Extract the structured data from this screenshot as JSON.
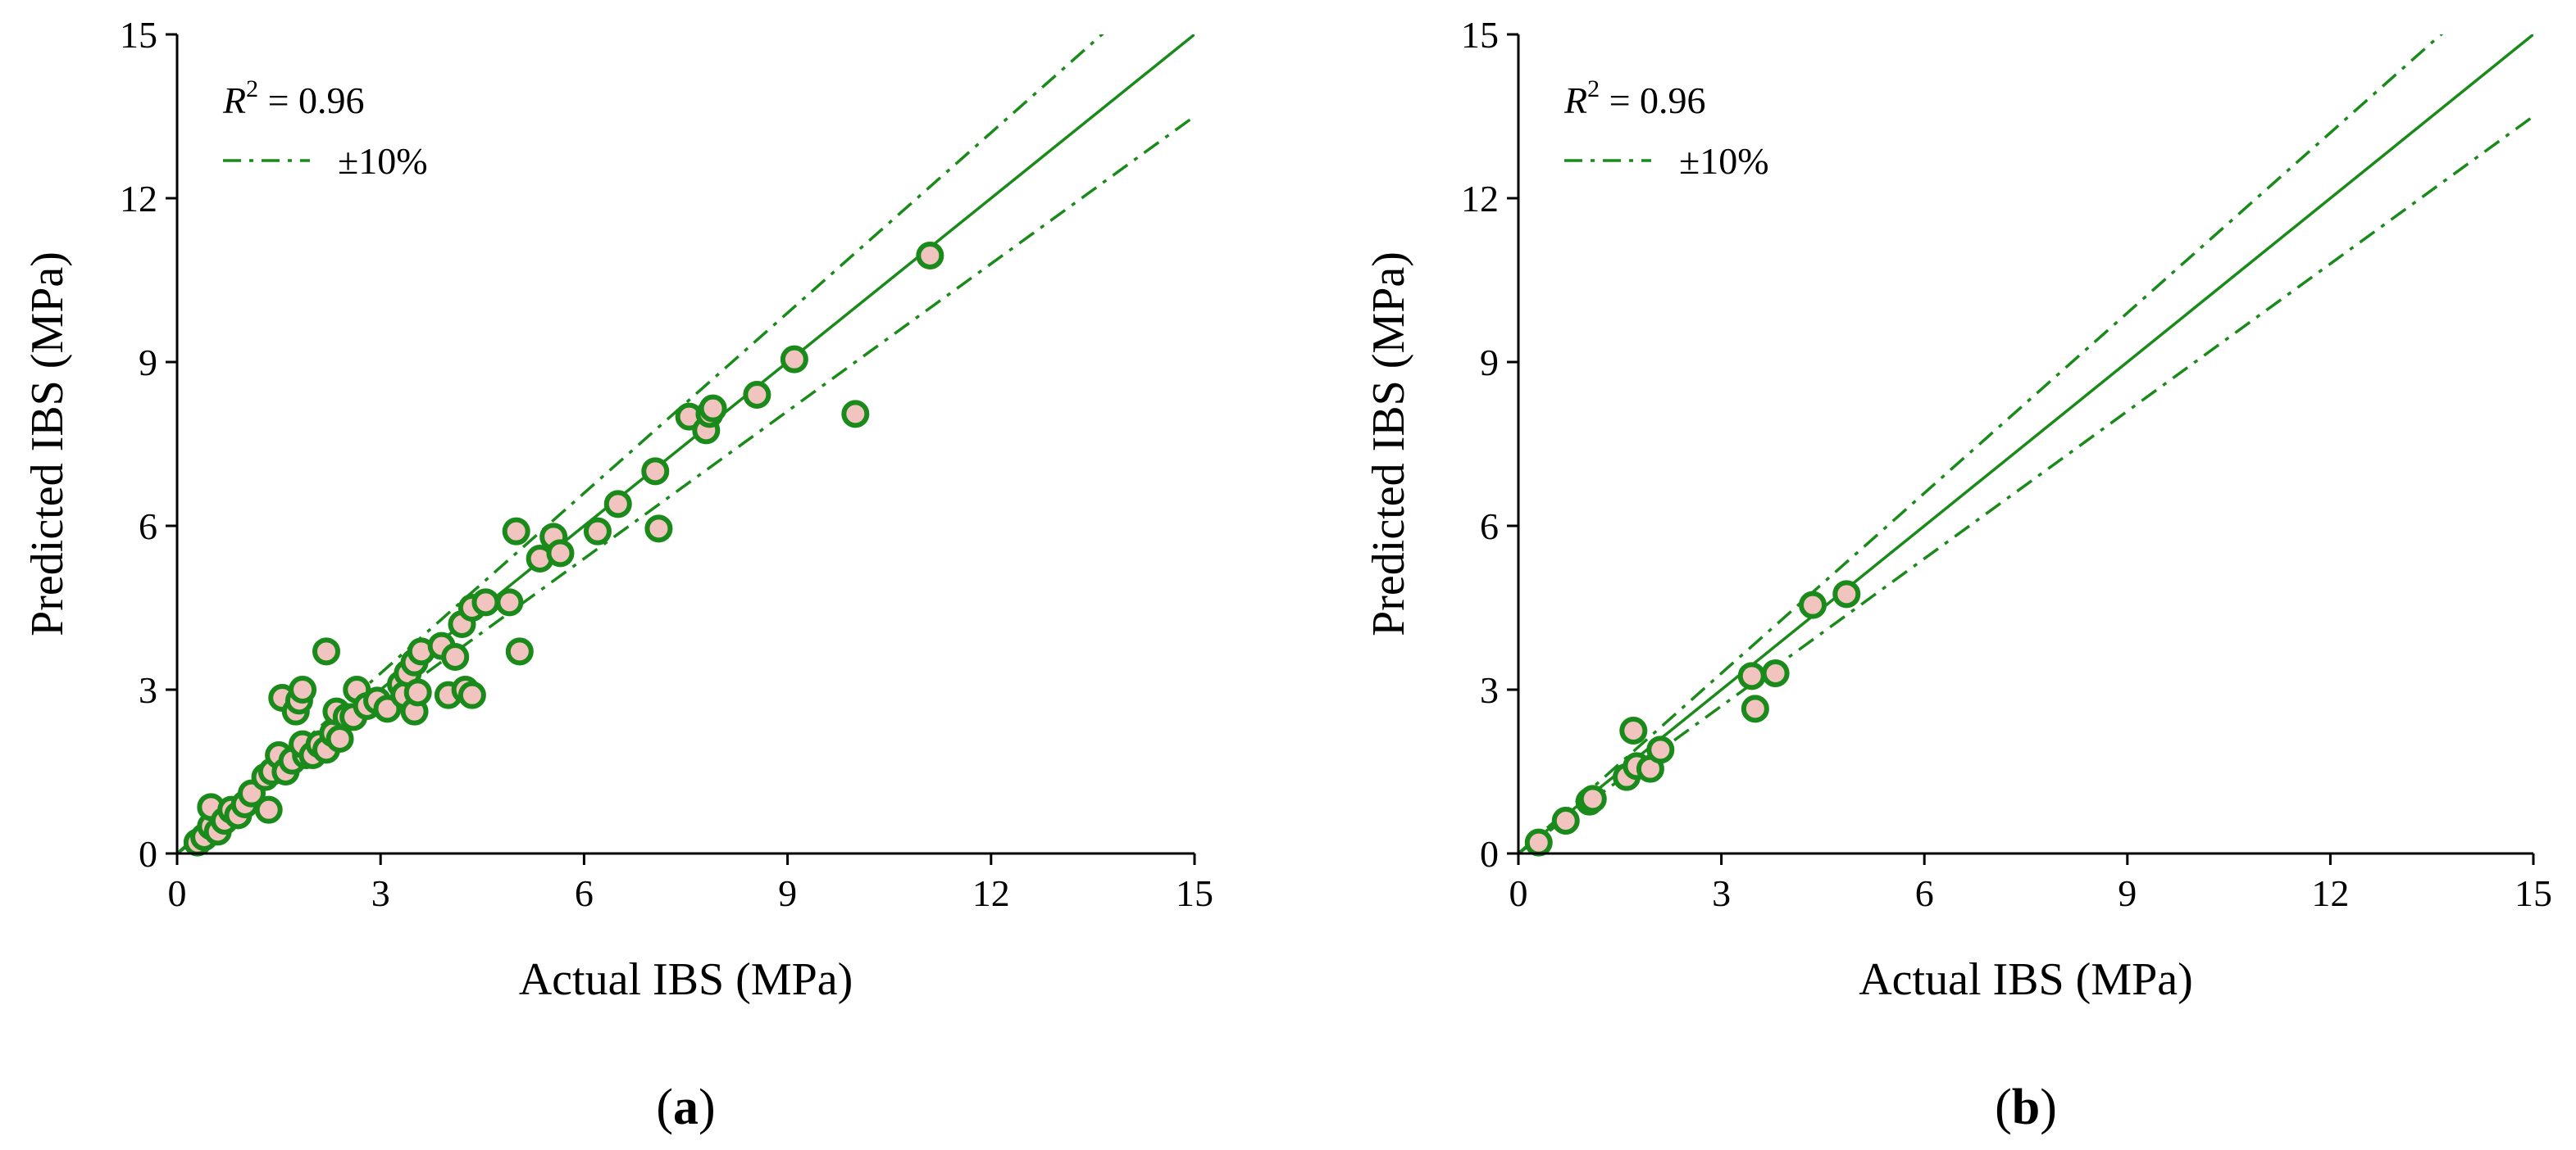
{
  "colors": {
    "line": "#1a8a1a",
    "marker_edge": "#1a8a1a",
    "marker_fill": "#f2c4c0",
    "axis": "#000000"
  },
  "chart_data": [
    {
      "type": "scatter",
      "panel_label": "(a)",
      "panel_letter": "a",
      "xlabel": "Actual IBS (MPa)",
      "ylabel": "Predicted IBS (MPa)",
      "xlim": [
        0,
        15
      ],
      "ylim": [
        0,
        15
      ],
      "xticks": [
        0,
        3,
        6,
        9,
        12,
        15
      ],
      "yticks": [
        0,
        3,
        6,
        9,
        12,
        15
      ],
      "annotation": {
        "r2_symbol": "R",
        "r2_exp": "2",
        "r2_value": " = 0.96"
      },
      "legend": [
        {
          "label": "±10%",
          "style": "dash-dot"
        }
      ],
      "reference_lines": [
        {
          "name": "y = x",
          "slope": 1.0,
          "style": "solid"
        },
        {
          "name": "+10%",
          "slope": 1.1,
          "style": "dash-dot"
        },
        {
          "name": "-10%",
          "slope": 0.9,
          "style": "dash-dot"
        }
      ],
      "points": [
        [
          0.3,
          0.2
        ],
        [
          0.4,
          0.3
        ],
        [
          0.5,
          0.5
        ],
        [
          0.6,
          0.4
        ],
        [
          0.5,
          0.85
        ],
        [
          0.7,
          0.6
        ],
        [
          0.8,
          0.8
        ],
        [
          0.9,
          0.7
        ],
        [
          1.0,
          0.9
        ],
        [
          1.1,
          1.1
        ],
        [
          1.3,
          1.4
        ],
        [
          1.35,
          0.8
        ],
        [
          1.4,
          1.5
        ],
        [
          1.5,
          1.8
        ],
        [
          1.55,
          2.85
        ],
        [
          1.6,
          1.5
        ],
        [
          1.7,
          1.7
        ],
        [
          1.75,
          2.6
        ],
        [
          1.8,
          2.8
        ],
        [
          1.85,
          3.0
        ],
        [
          1.9,
          1.8
        ],
        [
          1.85,
          2.0
        ],
        [
          2.0,
          1.8
        ],
        [
          2.1,
          2.0
        ],
        [
          2.2,
          1.9
        ],
        [
          2.2,
          3.7
        ],
        [
          2.3,
          2.2
        ],
        [
          2.35,
          2.6
        ],
        [
          2.4,
          2.1
        ],
        [
          2.5,
          2.5
        ],
        [
          2.6,
          2.5
        ],
        [
          2.65,
          3.0
        ],
        [
          2.8,
          2.7
        ],
        [
          2.95,
          2.8
        ],
        [
          3.1,
          2.65
        ],
        [
          3.3,
          3.1
        ],
        [
          3.35,
          2.9
        ],
        [
          3.4,
          3.3
        ],
        [
          3.5,
          3.5
        ],
        [
          3.5,
          2.6
        ],
        [
          3.55,
          2.95
        ],
        [
          3.6,
          3.7
        ],
        [
          3.9,
          3.8
        ],
        [
          4.0,
          2.9
        ],
        [
          4.1,
          3.6
        ],
        [
          4.2,
          4.2
        ],
        [
          4.25,
          3.0
        ],
        [
          4.35,
          4.5
        ],
        [
          4.35,
          2.9
        ],
        [
          4.55,
          4.6
        ],
        [
          4.9,
          4.6
        ],
        [
          5.0,
          5.9
        ],
        [
          5.05,
          3.7
        ],
        [
          5.35,
          5.4
        ],
        [
          5.55,
          5.8
        ],
        [
          5.65,
          5.5
        ],
        [
          6.2,
          5.9
        ],
        [
          6.5,
          6.4
        ],
        [
          7.05,
          7.0
        ],
        [
          7.1,
          5.95
        ],
        [
          7.55,
          8.0
        ],
        [
          7.8,
          7.75
        ],
        [
          7.85,
          8.05
        ],
        [
          7.9,
          8.15
        ],
        [
          8.55,
          8.4
        ],
        [
          9.1,
          9.05
        ],
        [
          10.0,
          8.05
        ],
        [
          11.1,
          10.95
        ]
      ]
    },
    {
      "type": "scatter",
      "panel_label": "(b)",
      "panel_letter": "b",
      "xlabel": "Actual IBS (MPa)",
      "ylabel": "Predicted IBS (MPa)",
      "xlim": [
        0,
        15
      ],
      "ylim": [
        0,
        15
      ],
      "xticks": [
        0,
        3,
        6,
        9,
        12,
        15
      ],
      "yticks": [
        0,
        3,
        6,
        9,
        12,
        15
      ],
      "annotation": {
        "r2_symbol": "R",
        "r2_exp": "2",
        "r2_value": " = 0.96"
      },
      "legend": [
        {
          "label": "±10%",
          "style": "dash-dot"
        }
      ],
      "reference_lines": [
        {
          "name": "y = x",
          "slope": 1.0,
          "style": "solid"
        },
        {
          "name": "+10%",
          "slope": 1.1,
          "style": "dash-dot"
        },
        {
          "name": "-10%",
          "slope": 0.9,
          "style": "dash-dot"
        }
      ],
      "points": [
        [
          0.3,
          0.2
        ],
        [
          0.7,
          0.6
        ],
        [
          1.05,
          0.95
        ],
        [
          1.1,
          1.0
        ],
        [
          1.6,
          1.4
        ],
        [
          1.7,
          2.25
        ],
        [
          1.75,
          1.6
        ],
        [
          1.95,
          1.55
        ],
        [
          2.1,
          1.9
        ],
        [
          3.45,
          3.25
        ],
        [
          3.5,
          2.65
        ],
        [
          3.8,
          3.3
        ],
        [
          4.35,
          4.55
        ],
        [
          4.85,
          4.75
        ]
      ]
    }
  ]
}
